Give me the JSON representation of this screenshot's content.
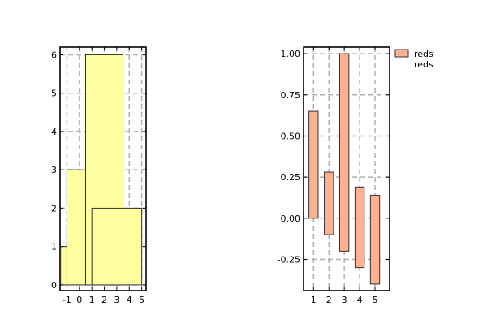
{
  "chart_data": [
    {
      "type": "bar",
      "xlim": [
        -1.55,
        5.35
      ],
      "ylim": [
        -0.15,
        6.2
      ],
      "xticks": [
        -1,
        0,
        1,
        2,
        3,
        4,
        5
      ],
      "yticks": [
        0,
        1,
        2,
        3,
        4,
        5,
        6
      ],
      "grid": true,
      "bars": [
        {
          "x_start": -1.4,
          "x_end": -1.0,
          "bottom": 0,
          "top": 1
        },
        {
          "x_start": -1.0,
          "x_end": 0.5,
          "bottom": 0,
          "top": 3
        },
        {
          "x_start": 0.5,
          "x_end": 3.5,
          "bottom": 0,
          "top": 6
        },
        {
          "x_start": 1.0,
          "x_end": 5.0,
          "bottom": 0,
          "top": 2
        }
      ],
      "colors": {
        "fill": "#ffffa0",
        "edge": "#333333"
      }
    },
    {
      "type": "bar",
      "xlim": [
        0.35,
        5.95
      ],
      "ylim": [
        -0.44,
        1.04
      ],
      "xticks": [
        1,
        2,
        3,
        4,
        5
      ],
      "yticks": [
        -0.25,
        0.0,
        0.25,
        0.5,
        0.75,
        1.0
      ],
      "ytick_labels": [
        "-0.25",
        "0.00",
        "0.25",
        "0.50",
        "0.75",
        "1.00"
      ],
      "grid": true,
      "legend": {
        "labels": [
          "reds",
          "reds"
        ],
        "placement": "outside-top-right"
      },
      "bars": [
        {
          "x": 1,
          "bottom": 0.0,
          "top": 0.65
        },
        {
          "x": 2,
          "bottom": -0.1,
          "top": 0.28
        },
        {
          "x": 3,
          "bottom": -0.2,
          "top": 1.0
        },
        {
          "x": 4,
          "bottom": -0.3,
          "top": 0.19
        },
        {
          "x": 5,
          "bottom": -0.4,
          "top": 0.14
        }
      ],
      "bar_width": 0.6,
      "colors": {
        "fill": "#ffb090",
        "edge": "#333333"
      }
    }
  ]
}
